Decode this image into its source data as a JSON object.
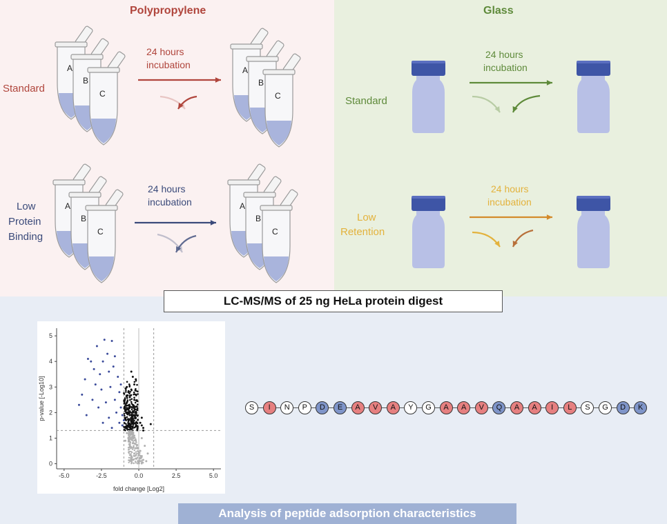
{
  "polypropylene": {
    "title": "Polypropylene",
    "standard_label": "Standard",
    "low_binding_label": [
      "Low",
      "Protein",
      "Binding"
    ],
    "incubation": [
      "24 hours",
      "incubation"
    ],
    "tube_labels": [
      "A",
      "B",
      "C"
    ]
  },
  "glass": {
    "title": "Glass",
    "standard_label": "Standard",
    "low_retention_label": [
      "Low",
      "Retention"
    ],
    "incubation": [
      "24 hours",
      "incubation"
    ]
  },
  "colors": {
    "pp_standard": "#b0453c",
    "pp_low": "#3a4a7a",
    "glass_standard": "#5e8a3a",
    "glass_low": "#e3b23c",
    "tube_liquid": "#a9b4dc",
    "vial_body": "#b8c0e6",
    "vial_cap": "#3e55a6",
    "hydrophobic": "#e68080",
    "charged": "#7f95c9",
    "neutral": "#ffffff"
  },
  "lcms_label": "LC-MS/MS of 25 ng HeLa protein digest",
  "analysis_label": "Analysis of peptide adsorption characteristics",
  "chart_data": {
    "type": "scatter",
    "title": "",
    "xlabel": "fold change [Log2]",
    "ylabel": "p-value [-Log10]",
    "xlim": [
      -5.5,
      5.5
    ],
    "ylim": [
      -0.2,
      5.3
    ],
    "x_ticks": [
      "-5.0",
      "-2.5",
      "0.0",
      "2.5",
      "5.0"
    ],
    "y_ticks": [
      "0",
      "1",
      "2",
      "3",
      "4",
      "5"
    ],
    "thresholds": {
      "fold_change": [
        -1,
        1
      ],
      "p_value": 1.3
    },
    "series": [
      {
        "color": "#3a4a9a",
        "points": [
          [
            -2.3,
            4.85
          ],
          [
            -1.8,
            4.8
          ],
          [
            -2.8,
            4.6
          ],
          [
            -3.4,
            4.1
          ],
          [
            -3.2,
            4.0
          ],
          [
            -2.1,
            4.3
          ],
          [
            -1.6,
            4.2
          ],
          [
            -3.0,
            3.7
          ],
          [
            -2.6,
            3.5
          ],
          [
            -3.6,
            3.3
          ],
          [
            -2.0,
            3.6
          ],
          [
            -1.4,
            3.4
          ],
          [
            -2.9,
            3.1
          ],
          [
            -3.8,
            2.7
          ],
          [
            -2.5,
            2.9
          ],
          [
            -1.9,
            3.0
          ],
          [
            -1.3,
            2.8
          ],
          [
            -3.1,
            2.5
          ],
          [
            -2.2,
            2.4
          ],
          [
            -1.6,
            2.5
          ],
          [
            -1.2,
            2.2
          ],
          [
            -2.7,
            2.2
          ],
          [
            -1.5,
            2.0
          ],
          [
            -1.1,
            1.9
          ],
          [
            -2.0,
            1.8
          ],
          [
            -1.3,
            1.6
          ],
          [
            -3.5,
            1.9
          ],
          [
            -1.0,
            1.7
          ],
          [
            -1.8,
            1.4
          ],
          [
            -1.1,
            1.5
          ],
          [
            -2.4,
            1.6
          ],
          [
            -4.0,
            2.3
          ],
          [
            -1.7,
            3.8
          ],
          [
            -2.4,
            4.0
          ],
          [
            -1.2,
            3.1
          ]
        ]
      },
      {
        "color": "#111111",
        "points": [
          [
            -0.5,
            2.9
          ],
          [
            -0.3,
            3.1
          ],
          [
            -0.6,
            2.6
          ],
          [
            -0.2,
            2.7
          ],
          [
            -0.8,
            2.4
          ],
          [
            -0.4,
            2.3
          ],
          [
            -0.1,
            2.1
          ],
          [
            -0.7,
            2.0
          ],
          [
            -0.3,
            1.9
          ],
          [
            -0.9,
            1.8
          ],
          [
            -0.5,
            1.7
          ],
          [
            -0.2,
            1.6
          ],
          [
            -0.6,
            1.5
          ],
          [
            -0.8,
            1.4
          ],
          [
            -0.4,
            1.4
          ],
          [
            -0.1,
            1.35
          ],
          [
            -0.6,
            2.2
          ],
          [
            -0.3,
            2.5
          ],
          [
            -0.7,
            2.8
          ],
          [
            -0.4,
            3.4
          ],
          [
            -0.2,
            3.3
          ],
          [
            -0.9,
            2.1
          ],
          [
            0.1,
            1.6
          ],
          [
            0.2,
            1.5
          ],
          [
            0.3,
            1.4
          ],
          [
            0.2,
            1.8
          ],
          [
            -0.5,
            3.6
          ],
          [
            -0.8,
            3.0
          ],
          [
            0.3,
            1.3
          ],
          [
            0.8,
            1.55
          ]
        ]
      },
      {
        "color": "#b0b0b0",
        "points": [
          [
            -0.5,
            1.2
          ],
          [
            -0.3,
            1.1
          ],
          [
            -0.7,
            1.0
          ],
          [
            -0.2,
            0.9
          ],
          [
            -0.4,
            0.8
          ],
          [
            -0.6,
            0.7
          ],
          [
            -0.1,
            0.6
          ],
          [
            0.1,
            0.5
          ],
          [
            -0.3,
            0.4
          ],
          [
            0.2,
            0.3
          ],
          [
            -0.2,
            0.2
          ],
          [
            0.3,
            0.15
          ],
          [
            0.5,
            0.1
          ],
          [
            0.0,
            0.05
          ],
          [
            -0.9,
            0.9
          ],
          [
            -0.8,
            1.2
          ],
          [
            0.4,
            0.7
          ],
          [
            0.6,
            0.4
          ],
          [
            0.2,
            1.0
          ],
          [
            -0.5,
            0.3
          ]
        ]
      }
    ]
  },
  "peptide": [
    {
      "aa": "S",
      "type": "neutral"
    },
    {
      "aa": "I",
      "type": "hydrophobic"
    },
    {
      "aa": "N",
      "type": "neutral"
    },
    {
      "aa": "P",
      "type": "neutral"
    },
    {
      "aa": "D",
      "type": "charged"
    },
    {
      "aa": "E",
      "type": "charged"
    },
    {
      "aa": "A",
      "type": "hydrophobic"
    },
    {
      "aa": "V",
      "type": "hydrophobic"
    },
    {
      "aa": "A",
      "type": "hydrophobic"
    },
    {
      "aa": "Y",
      "type": "neutral"
    },
    {
      "aa": "G",
      "type": "neutral"
    },
    {
      "aa": "A",
      "type": "hydrophobic"
    },
    {
      "aa": "A",
      "type": "hydrophobic"
    },
    {
      "aa": "V",
      "type": "hydrophobic"
    },
    {
      "aa": "Q",
      "type": "charged"
    },
    {
      "aa": "A",
      "type": "hydrophobic"
    },
    {
      "aa": "A",
      "type": "hydrophobic"
    },
    {
      "aa": "I",
      "type": "hydrophobic"
    },
    {
      "aa": "L",
      "type": "hydrophobic"
    },
    {
      "aa": "S",
      "type": "neutral"
    },
    {
      "aa": "G",
      "type": "neutral"
    },
    {
      "aa": "D",
      "type": "charged"
    },
    {
      "aa": "K",
      "type": "charged"
    }
  ]
}
